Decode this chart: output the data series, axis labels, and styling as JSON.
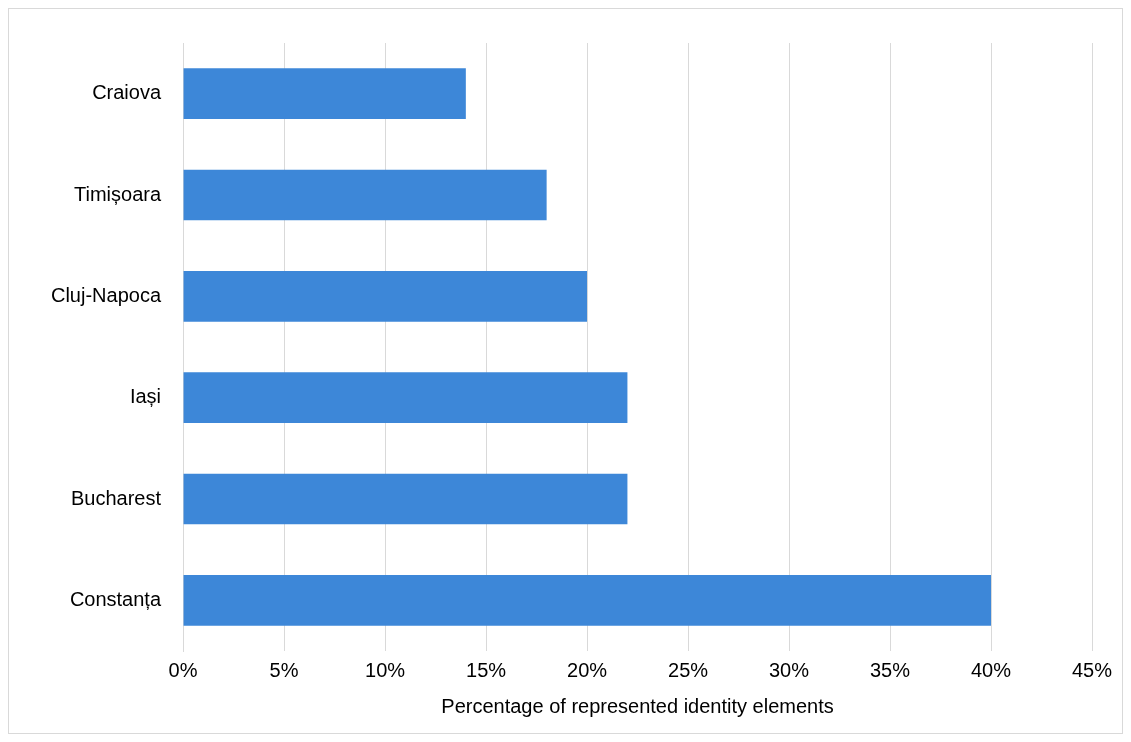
{
  "chart_data": {
    "type": "bar",
    "orientation": "horizontal",
    "xlabel": "Percentage of represented identity elements",
    "categories": [
      "Craiova",
      "Timișoara",
      "Cluj-Napoca",
      "Iași",
      "Bucharest",
      "Constanța"
    ],
    "values": [
      14,
      18,
      20,
      22,
      22,
      40
    ],
    "color": "#3d87d8",
    "xlim": [
      0,
      45
    ],
    "xticks": [
      {
        "value": 0,
        "label": "0%"
      },
      {
        "value": 5,
        "label": "5%"
      },
      {
        "value": 10,
        "label": "10%"
      },
      {
        "value": 15,
        "label": "15%"
      },
      {
        "value": 20,
        "label": "20%"
      },
      {
        "value": 25,
        "label": "25%"
      },
      {
        "value": 30,
        "label": "30%"
      },
      {
        "value": 35,
        "label": "35%"
      },
      {
        "value": 40,
        "label": "40%"
      },
      {
        "value": 45,
        "label": "45%"
      }
    ],
    "grid": "x",
    "legend": false
  }
}
